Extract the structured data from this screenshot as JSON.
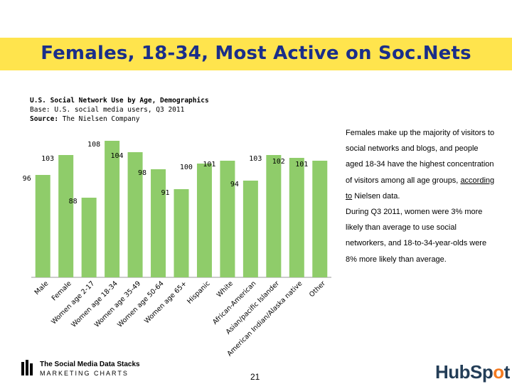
{
  "title": "Females, 18-34, Most Active on Soc.Nets",
  "meta": {
    "line1": "U.S. Social Network Use by Age, Demographics",
    "line2": "Base: U.S. social media users, Q3 2011",
    "line3_label": "Source:",
    "line3_value": "The Nielsen Company"
  },
  "description": {
    "text1": "Females make up the majority of visitors to social networks and blogs, and people aged 18-34 have the highest concentration of visitors among all age groups,",
    "link_text": "according to",
    "text2": " Nielsen data.",
    "text3": "During Q3 2011, women were 3% more likely than average to use social networkers, and 18-to-34-year-olds were 8% more likely than average."
  },
  "colors": {
    "title_bar": "#ffe44d",
    "title_text": "#1a2e8a",
    "bar": "#8fcc6a",
    "bar_highlight": "#8fcc6a"
  },
  "chart_data": {
    "type": "bar",
    "title": "U.S. Social Network Use by Age, Demographics",
    "categories": [
      "Male",
      "Female",
      "Women age 2-17",
      "Women age 18-34",
      "Women age 35-49",
      "Women age 50-64",
      "Women age 65+",
      "Hispanic",
      "White",
      "African-American",
      "Asian/pacific Islander",
      "American Indian/Alaska native",
      "Other"
    ],
    "values": [
      96,
      103,
      88,
      108,
      104,
      98,
      91,
      100,
      101,
      94,
      103,
      102,
      101
    ],
    "ylim": [
      60,
      110
    ],
    "xlabel": "",
    "ylabel": ""
  },
  "footer": {
    "brand_line1": "The Social Media Data Stacks",
    "brand_line2": "MARKETING CHARTS",
    "page_number": "21",
    "logo_text_a": "HubSp",
    "logo_text_o": "o",
    "logo_text_b": "t"
  }
}
